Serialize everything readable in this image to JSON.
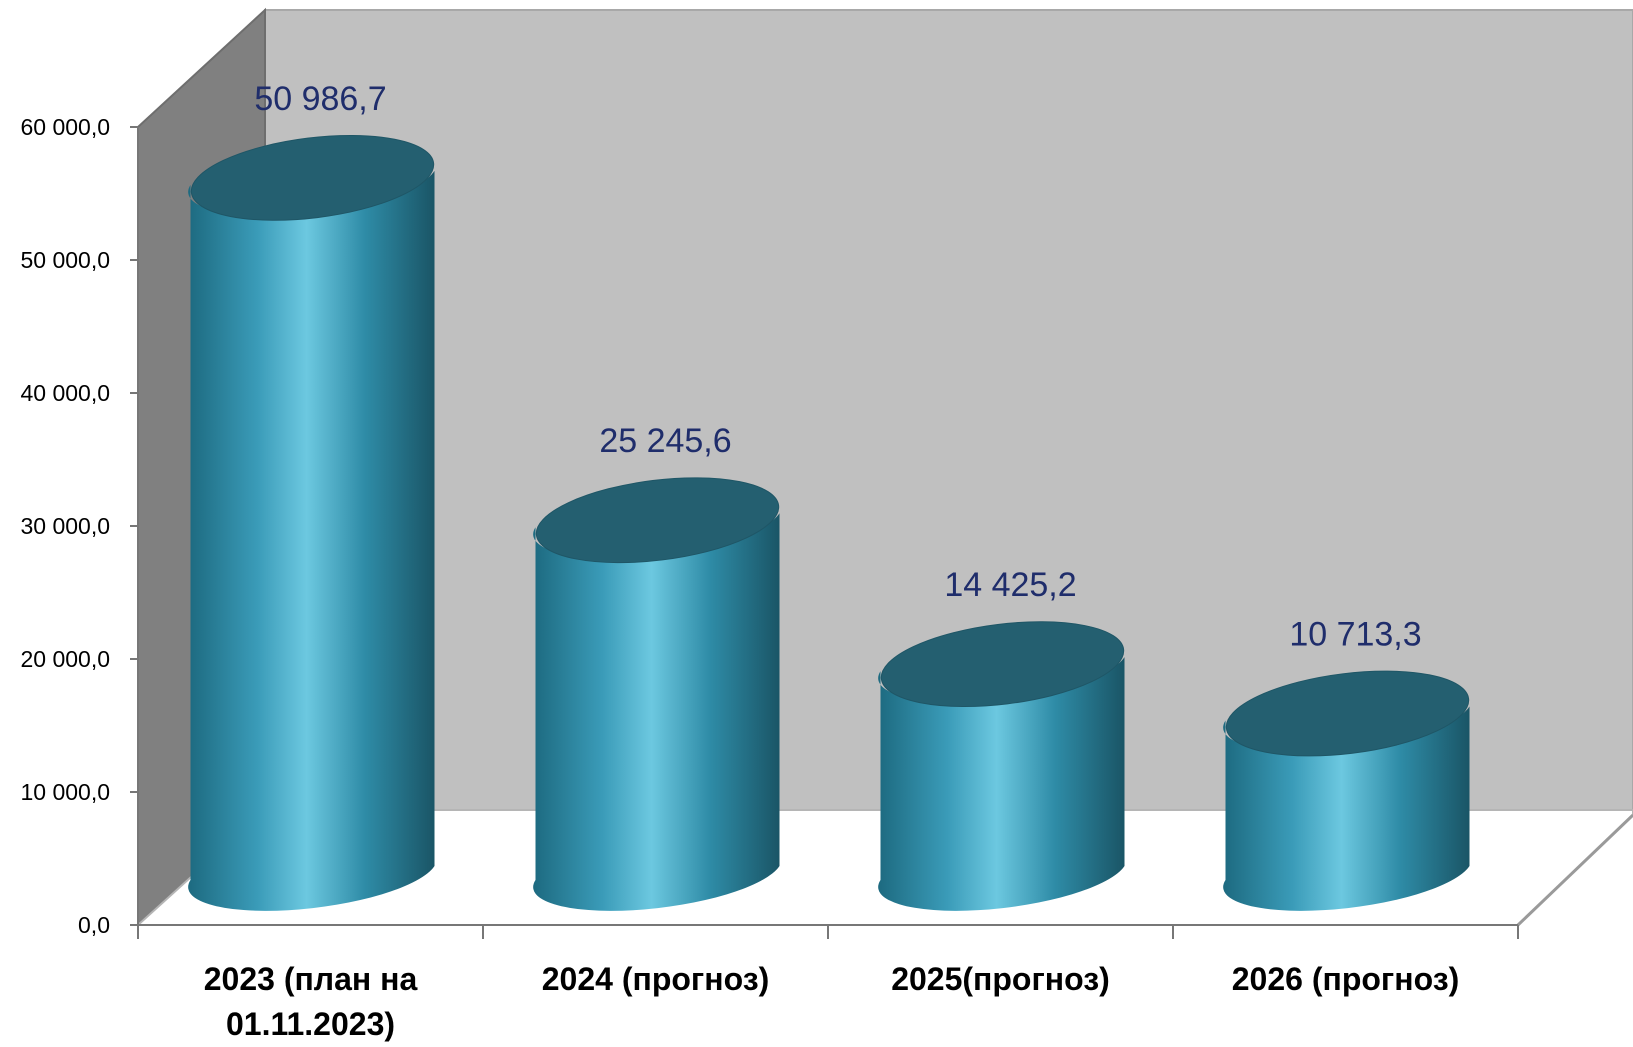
{
  "chart_data": {
    "type": "bar",
    "categories": [
      "2023 (план на 01.11.2023)",
      "2024 (прогноз)",
      "2025(прогноз)",
      "2026 (прогноз)"
    ],
    "category_lines": [
      [
        "2023 (план на",
        "01.11.2023)"
      ],
      [
        "2024 (прогноз)"
      ],
      [
        "2025(прогноз)"
      ],
      [
        "2026 (прогноз)"
      ]
    ],
    "values": [
      50986.7,
      25245.6,
      14425.2,
      10713.3
    ],
    "value_labels": [
      "50 986,7",
      "25 245,6",
      "14 425,2",
      "10 713,3"
    ],
    "y_ticks": [
      0,
      10000,
      20000,
      30000,
      40000,
      50000,
      60000
    ],
    "y_tick_labels": [
      "0,0",
      "10 000,0",
      "20 000,0",
      "30 000,0",
      "40 000,0",
      "50 000,0",
      "60 000,0"
    ],
    "ylim": [
      0,
      60000
    ],
    "title": "",
    "xlabel": "",
    "ylabel": "",
    "grid": false,
    "legend": "none",
    "style": "3d-cylinder",
    "colors": {
      "bar_light": "#6cc8e0",
      "bar_mid": "#2e8ba6",
      "bar_dark": "#1d5d70",
      "bar_top": "#245f70",
      "back_wall": "#c0c0c0",
      "side_wall": "#808080",
      "floor": "#ffffff",
      "value_label": "#1f2d6b",
      "axis_text": "#000000"
    }
  }
}
